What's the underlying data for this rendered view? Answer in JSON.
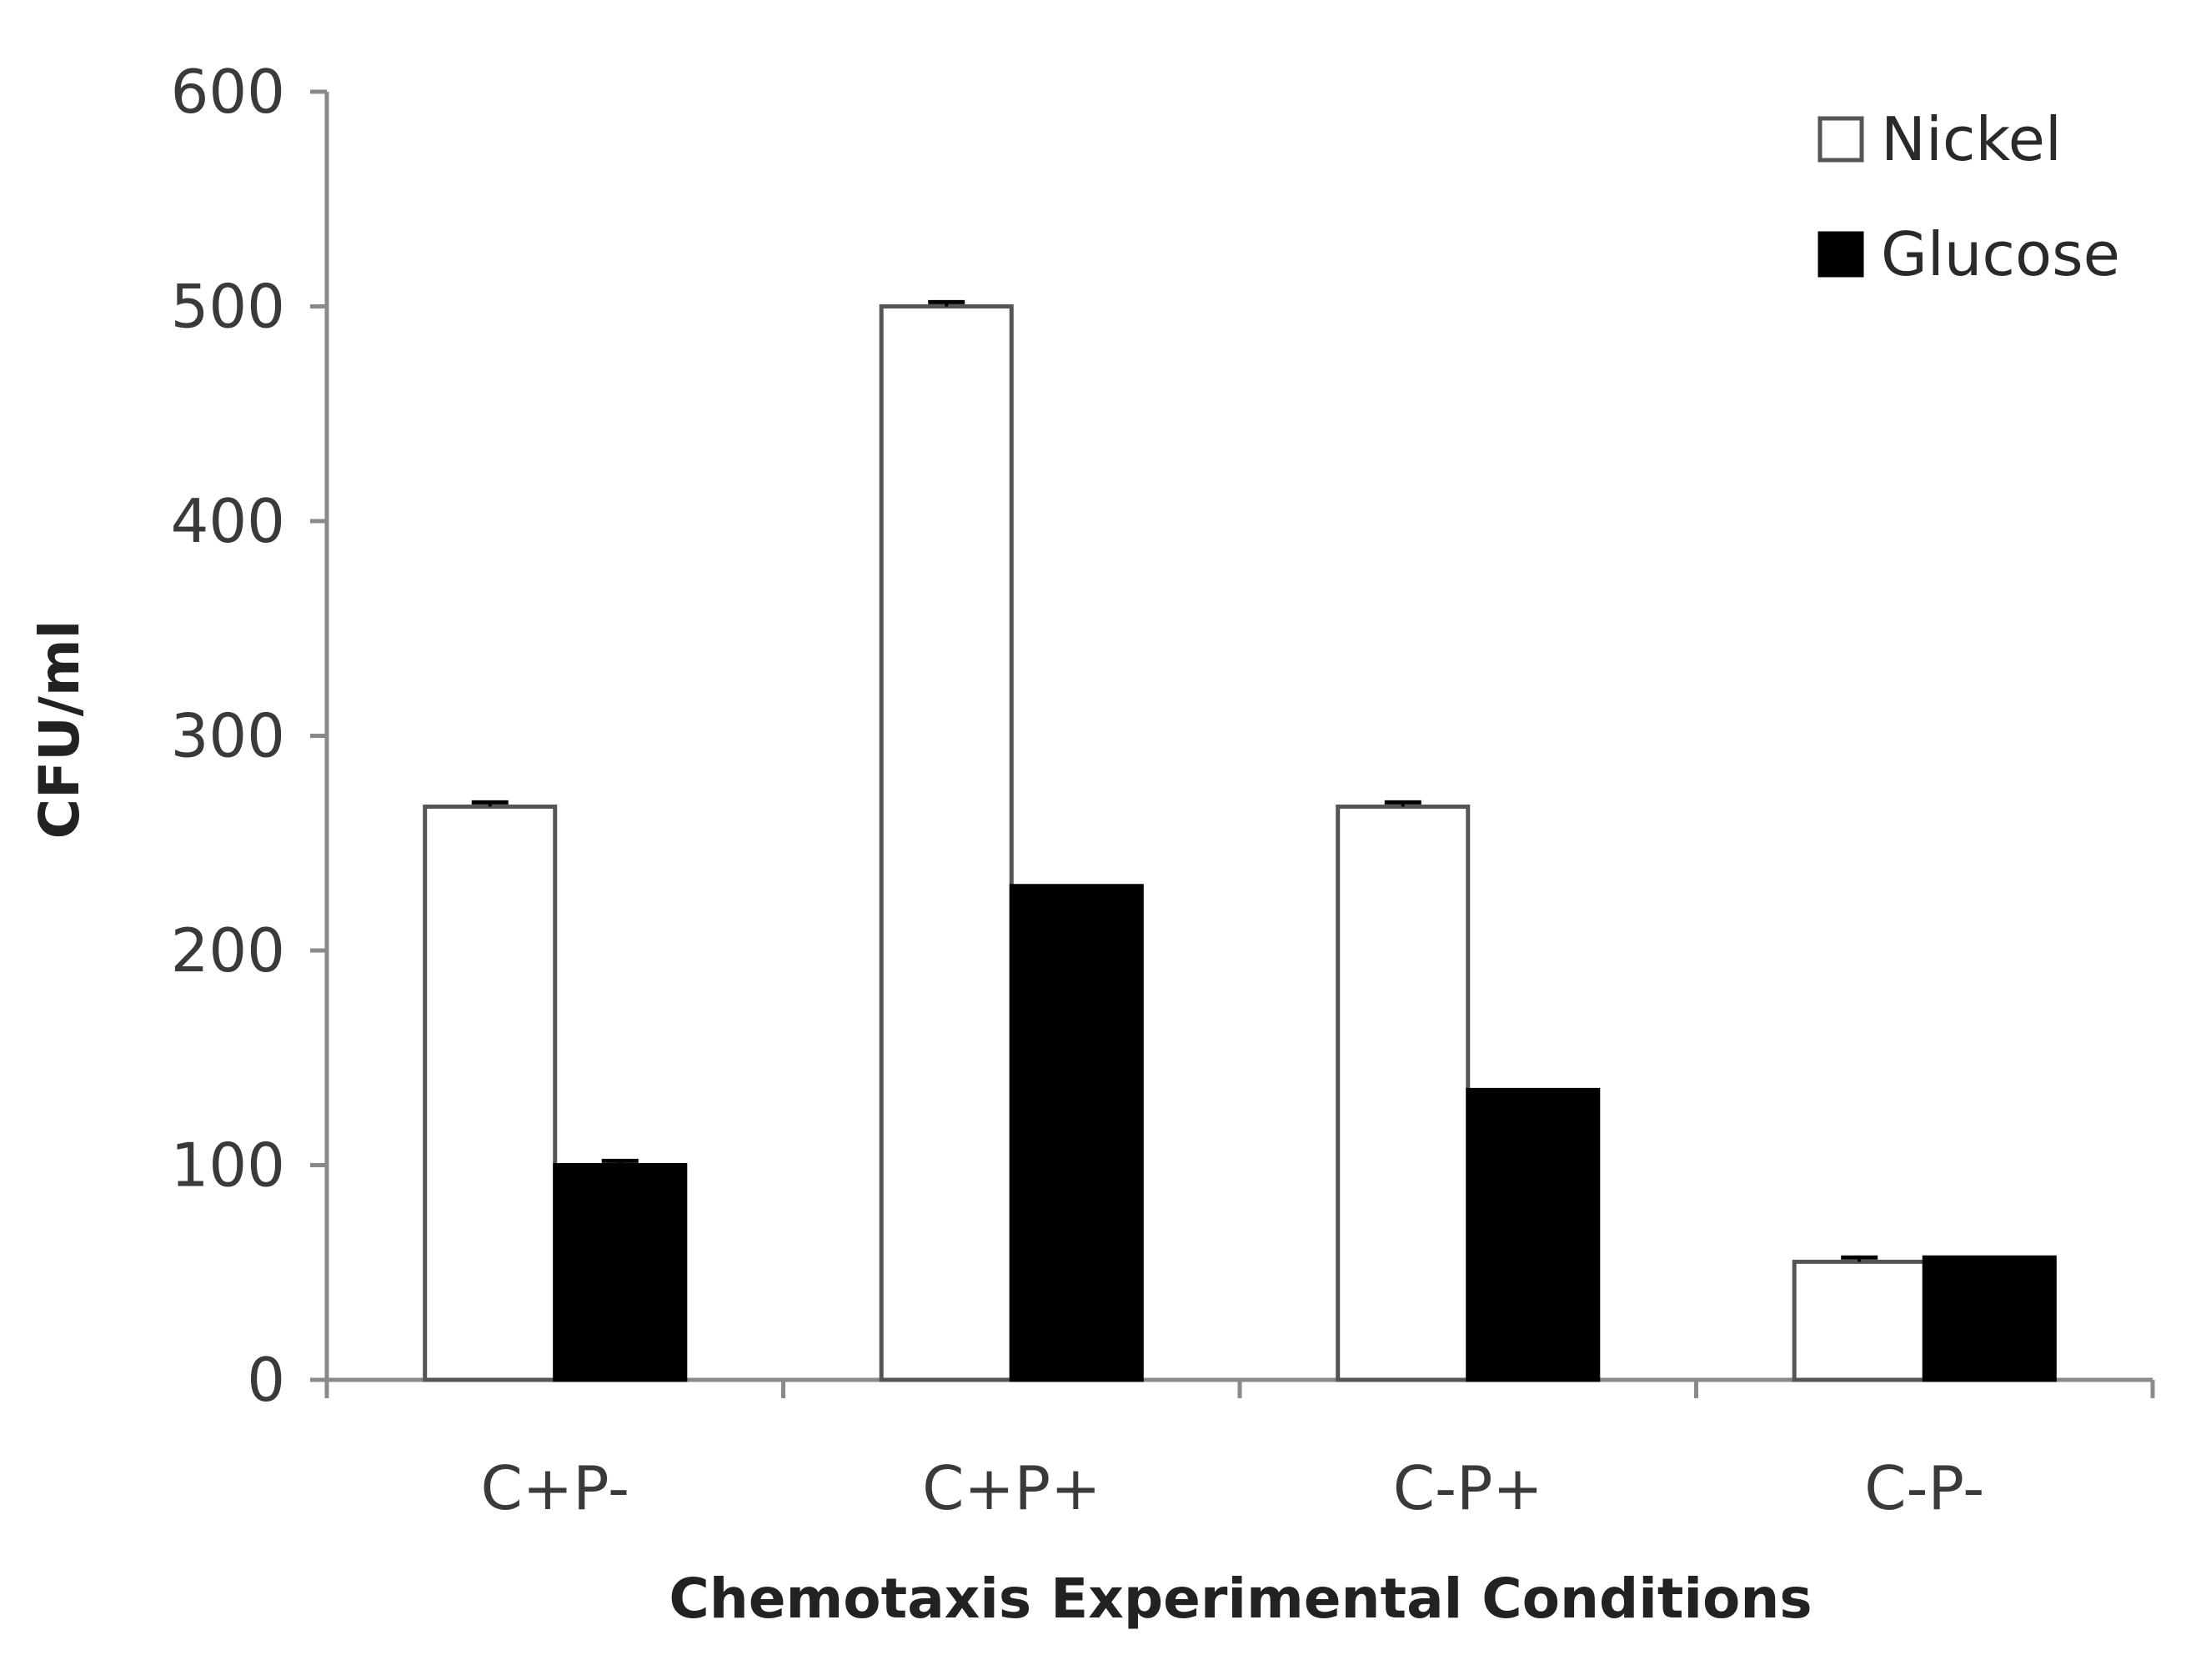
{
  "chart_data": {
    "type": "bar",
    "title": "",
    "xlabel": "Chemotaxis Experimental Conditions",
    "ylabel": "CFU/ml",
    "ylim": [
      0,
      600
    ],
    "yticks": [
      0,
      100,
      200,
      300,
      400,
      500,
      600
    ],
    "ytick_labels": [
      "0",
      "100",
      "200",
      "300",
      "400",
      "500",
      "600"
    ],
    "categories": [
      "C+P-",
      "C+P+",
      "C-P+",
      "C-P-"
    ],
    "series": [
      {
        "name": "Nickel",
        "fill": "#ffffff",
        "stroke": "#555555",
        "values": [
          267,
          500,
          267,
          55
        ],
        "errors": [
          2,
          2,
          2,
          2
        ]
      },
      {
        "name": "Glucose",
        "fill": "#000000",
        "stroke": "#000000",
        "values": [
          100,
          230,
          135,
          57
        ],
        "errors": [
          2,
          0,
          0,
          0
        ]
      }
    ],
    "legend": {
      "position": "top-right",
      "entries": [
        "Nickel",
        "Glucose"
      ]
    },
    "grid": false
  },
  "colors": {
    "axis": "#8a8a8a",
    "nickel_fill": "#ffffff",
    "glucose_fill": "#000000"
  }
}
